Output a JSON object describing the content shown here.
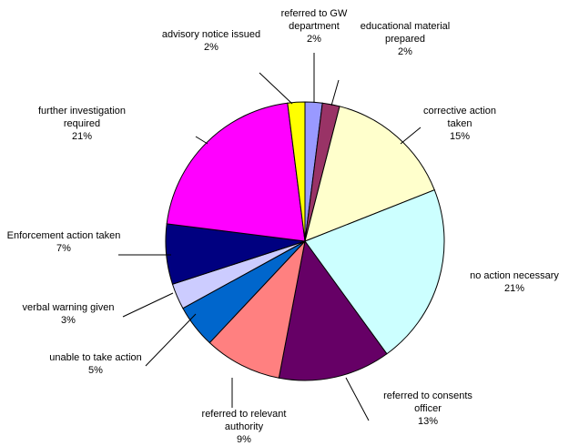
{
  "chart_data": {
    "type": "pie",
    "categories": [
      "referred to GW department",
      "educational material prepared",
      "corrective action taken",
      "no action necessary",
      "referred to consents officer",
      "referred to relevant authority",
      "unable to take action",
      "verbal warning given",
      "Enforcement action taken",
      "further investigation required",
      "advisory notice issued"
    ],
    "values": [
      2,
      2,
      15,
      21,
      13,
      9,
      5,
      3,
      7,
      21,
      2
    ],
    "value_labels": [
      "2%",
      "2%",
      "15%",
      "21%",
      "13%",
      "9%",
      "5%",
      "3%",
      "7%",
      "21%",
      "2%"
    ],
    "colors": [
      "#9999ff",
      "#993366",
      "#ffffcc",
      "#ccffff",
      "#660066",
      "#ff8080",
      "#0066cc",
      "#ccccff",
      "#000080",
      "#ff00ff",
      "#ffff00"
    ]
  }
}
